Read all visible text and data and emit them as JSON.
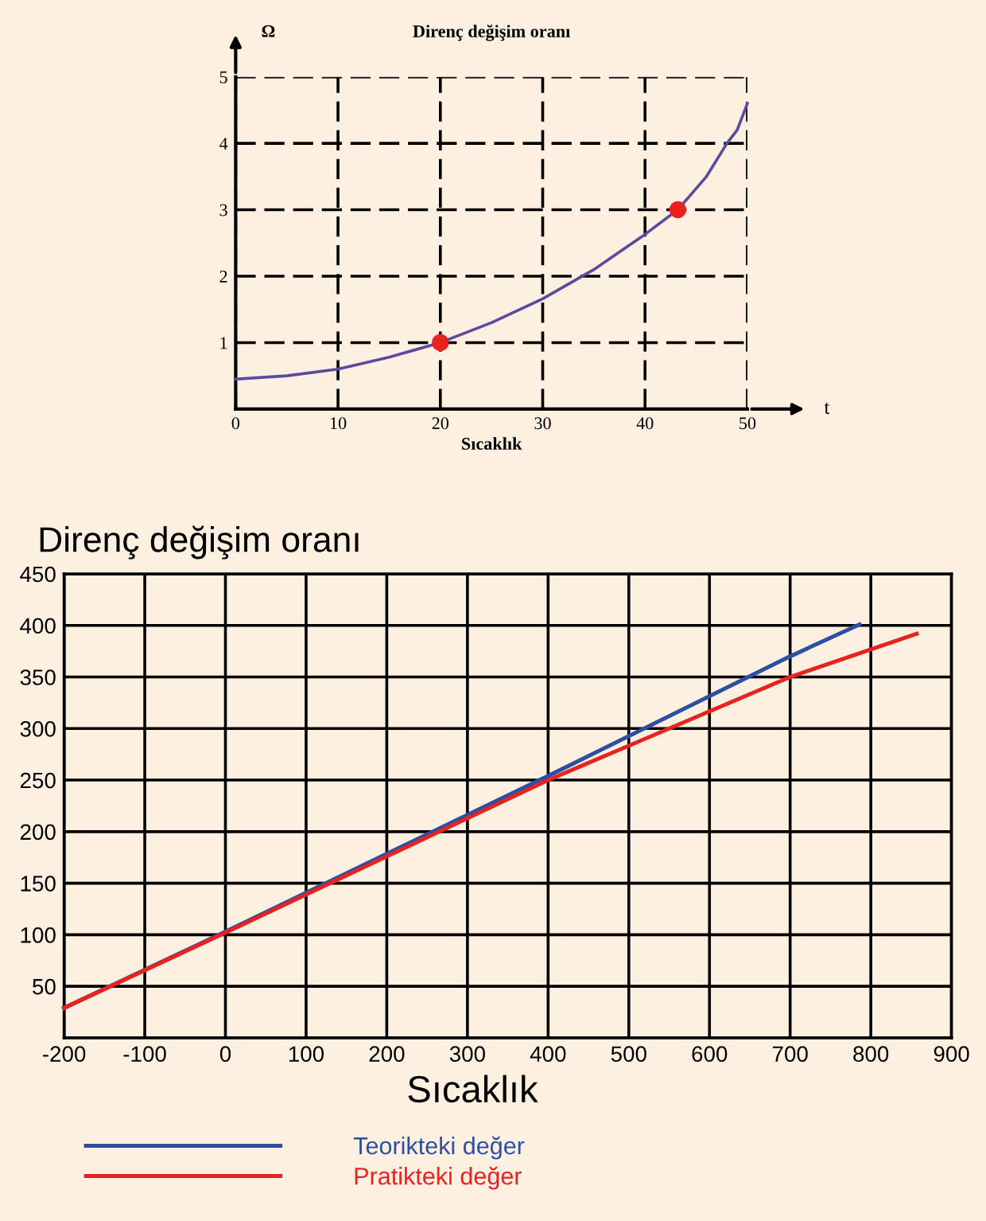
{
  "chart_data": [
    {
      "type": "line",
      "title": "Direnç değişim oranı",
      "xlabel": "Sıcaklık",
      "ylabel": "Ω",
      "annotations": [
        "t"
      ],
      "x": [
        0,
        5,
        10,
        15,
        20,
        25,
        30,
        35,
        40,
        43.2,
        46,
        48,
        49,
        50
      ],
      "series": [
        {
          "color": "#5b4b9e",
          "values": [
            0.45,
            0.5,
            0.6,
            0.78,
            1.0,
            1.3,
            1.66,
            2.1,
            2.63,
            3.0,
            3.5,
            4.0,
            4.2,
            4.6
          ]
        },
        {
          "type": "scatter",
          "color": "#e8231f",
          "x": [
            20,
            43.2
          ],
          "values": [
            1.0,
            3.0
          ],
          "marker": "circle"
        }
      ],
      "xlim": [
        0,
        50
      ],
      "ylim": [
        0,
        5
      ],
      "xticks": [
        0,
        10,
        20,
        30,
        40,
        50
      ],
      "yticks": [
        {
          "value": 0,
          "label": null
        },
        1,
        2,
        3,
        4,
        5
      ],
      "grid": true
    },
    {
      "type": "line",
      "title": "Direnç değişim oranı",
      "xlabel": "Sıcaklık",
      "series": [
        {
          "name": "Teorikteki değer",
          "color": "#2b4fa3",
          "x": [
            -200,
            0,
            400,
            700,
            786
          ],
          "values": [
            29,
            103,
            254,
            370,
            401
          ]
        },
        {
          "name": "Pratikteki değer",
          "color": "#e8231f",
          "x": [
            -200,
            0,
            400,
            700,
            857
          ],
          "values": [
            29,
            102,
            250,
            350,
            392
          ]
        }
      ],
      "xlim": [
        -200,
        900
      ],
      "ylim": [
        0,
        450
      ],
      "xticks": [
        -200,
        -100,
        0,
        100,
        200,
        300,
        400,
        500,
        600,
        700,
        800,
        900
      ],
      "yticks": [
        {
          "value": 0,
          "label": null
        },
        50,
        100,
        150,
        200,
        250,
        300,
        350,
        400,
        450
      ],
      "grid": true,
      "legend": "bottom left"
    }
  ]
}
